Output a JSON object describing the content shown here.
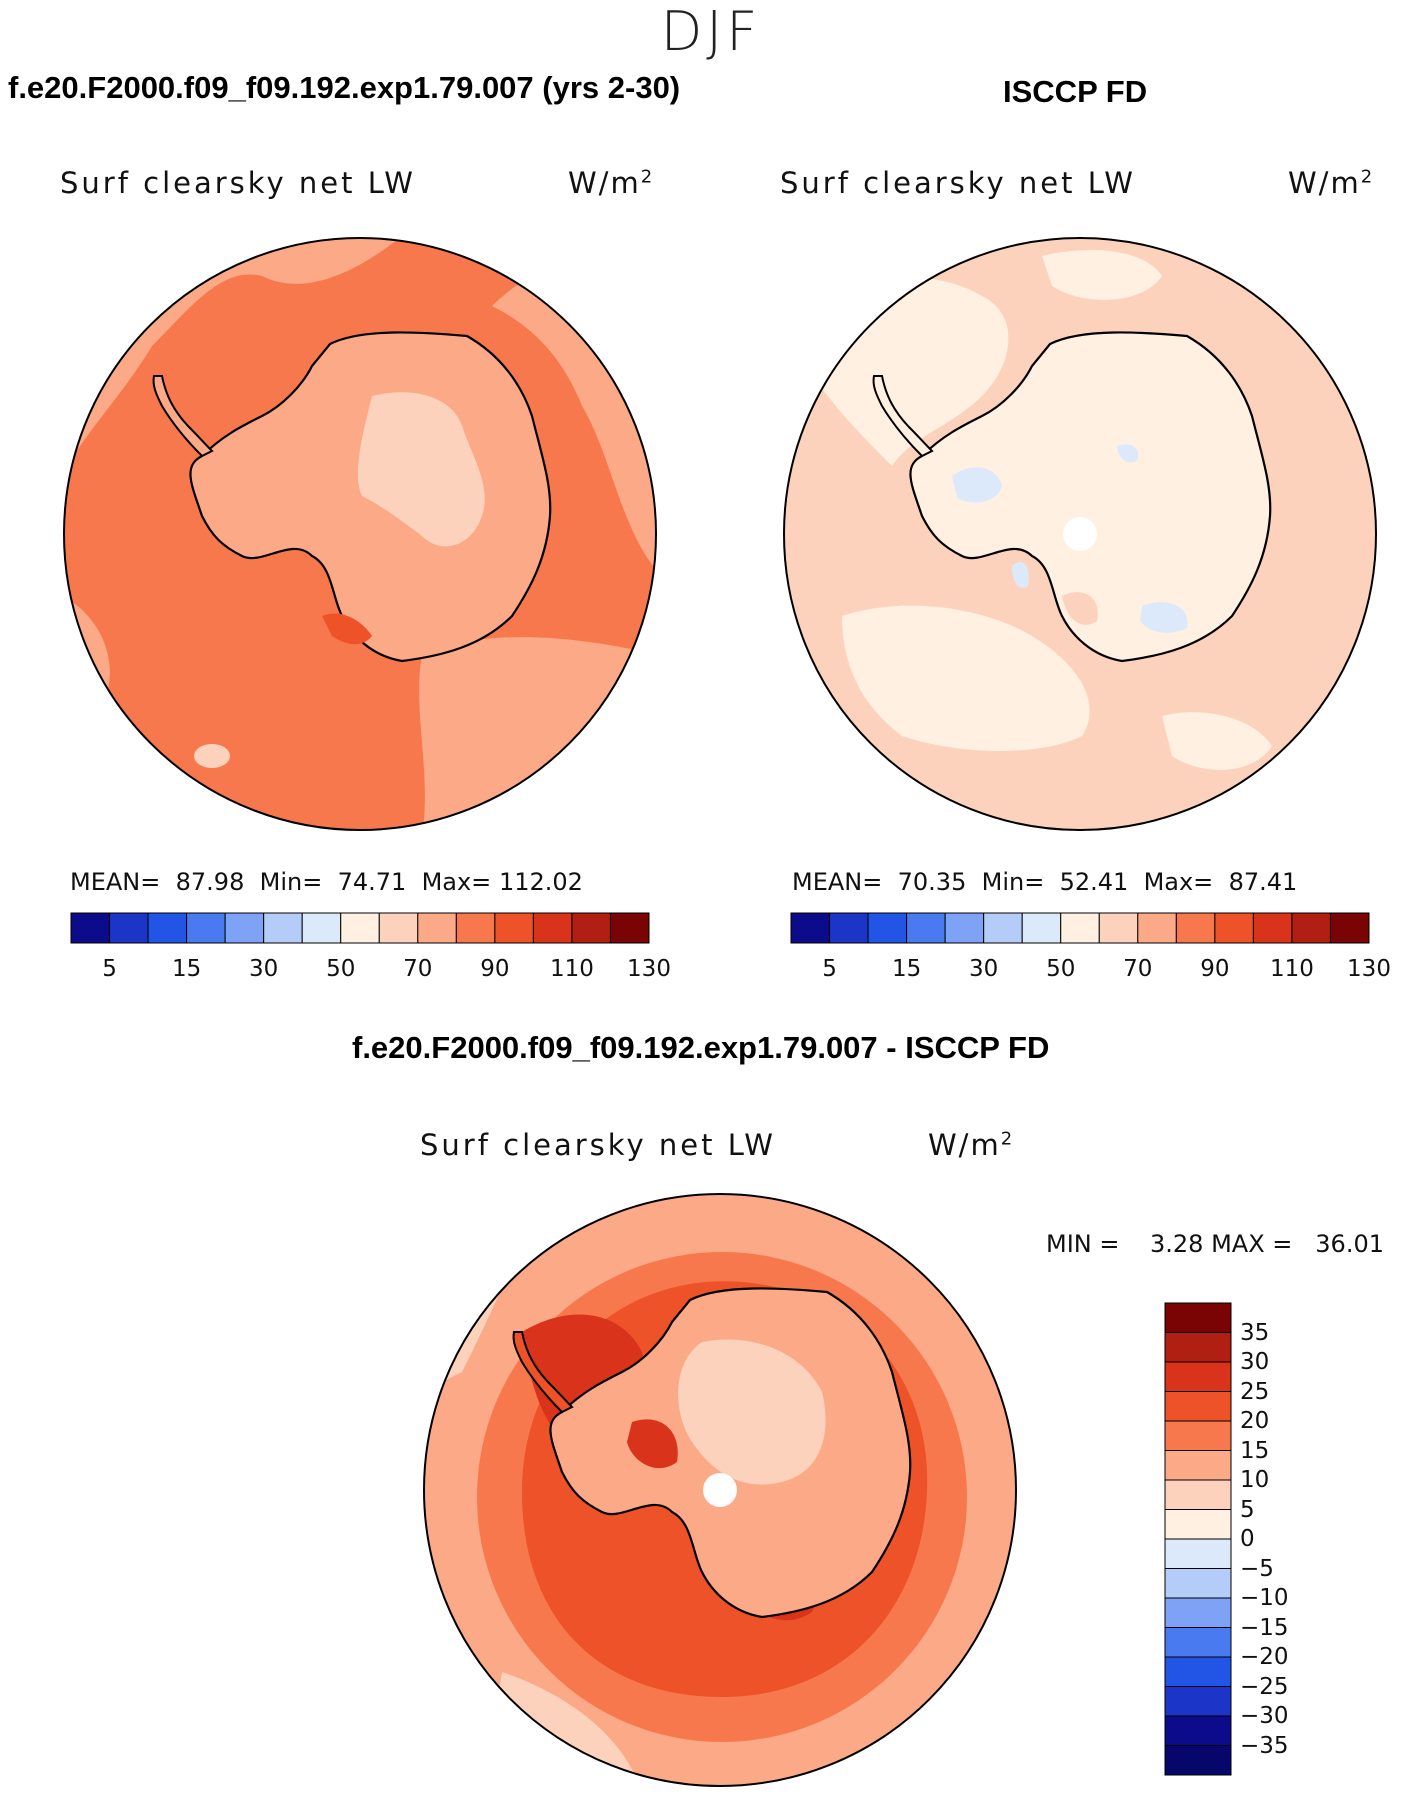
{
  "season": "DJF",
  "panels": {
    "model": {
      "title": "f.e20.F2000.f09_f09.192.exp1.79.007 (yrs 2-30)",
      "variable": "Surf clearsky net LW",
      "units": "W/m",
      "units_exp": "2",
      "stats": {
        "mean_label": "MEAN=",
        "mean": "87.98",
        "min_label": "Min=",
        "min": "74.71",
        "max_label": "Max=",
        "max": "112.02"
      }
    },
    "obs": {
      "title": "ISCCP FD",
      "variable": "Surf clearsky net LW",
      "units": "W/m",
      "units_exp": "2",
      "stats": {
        "mean_label": "MEAN=",
        "mean": "70.35",
        "min_label": "Min=",
        "min": "52.41",
        "max_label": "Max=",
        "max": "87.41"
      }
    },
    "diff": {
      "title": "f.e20.F2000.f09_f09.192.exp1.79.007 - ISCCP FD",
      "variable": "Surf clearsky net LW",
      "units": "W/m",
      "units_exp": "2",
      "stats": {
        "min_label": "MIN =",
        "min": "3.28",
        "max_label": "MAX =",
        "max": "36.01"
      }
    }
  },
  "colorbar_abs": {
    "colors": [
      "#0b0b8c",
      "#1a35c8",
      "#2255e6",
      "#4a7af0",
      "#7ea2f5",
      "#b4ccf8",
      "#dce9fb",
      "#fff0e2",
      "#fdd2bd",
      "#fba987",
      "#f8784d",
      "#ee5228",
      "#d9341b",
      "#b11e12",
      "#7a0404"
    ],
    "tick_labels": [
      "5",
      "15",
      "30",
      "50",
      "70",
      "90",
      "110",
      "130"
    ]
  },
  "colorbar_diff": {
    "colors": [
      "#7a0404",
      "#b11e12",
      "#d9341b",
      "#ee5228",
      "#f8784d",
      "#fba987",
      "#fdd2bd",
      "#fff0e2",
      "#dce9fb",
      "#b4ccf8",
      "#7ea2f5",
      "#4a7af0",
      "#2255e6",
      "#1a35c8",
      "#0b0b8c",
      "#06066b"
    ],
    "tick_labels": [
      "35",
      "30",
      "25",
      "20",
      "15",
      "10",
      "5",
      "0",
      "−5",
      "−10",
      "−15",
      "−20",
      "−25",
      "−30",
      "−35"
    ]
  },
  "map_fill": {
    "model_ocean": "#f8784d",
    "model_ocean_light": "#fba987",
    "model_land": "#fba987",
    "model_interior": "#fdd2bd",
    "obs_ocean": "#fdd2bd",
    "obs_light": "#fff0e2",
    "obs_blue": "#dce9fb",
    "diff_outer": "#fba987",
    "diff_mid": "#f8784d",
    "diff_ring": "#ee5228",
    "diff_dark": "#d9341b",
    "diff_land": "#fdd2bd",
    "coast": "#000000"
  }
}
